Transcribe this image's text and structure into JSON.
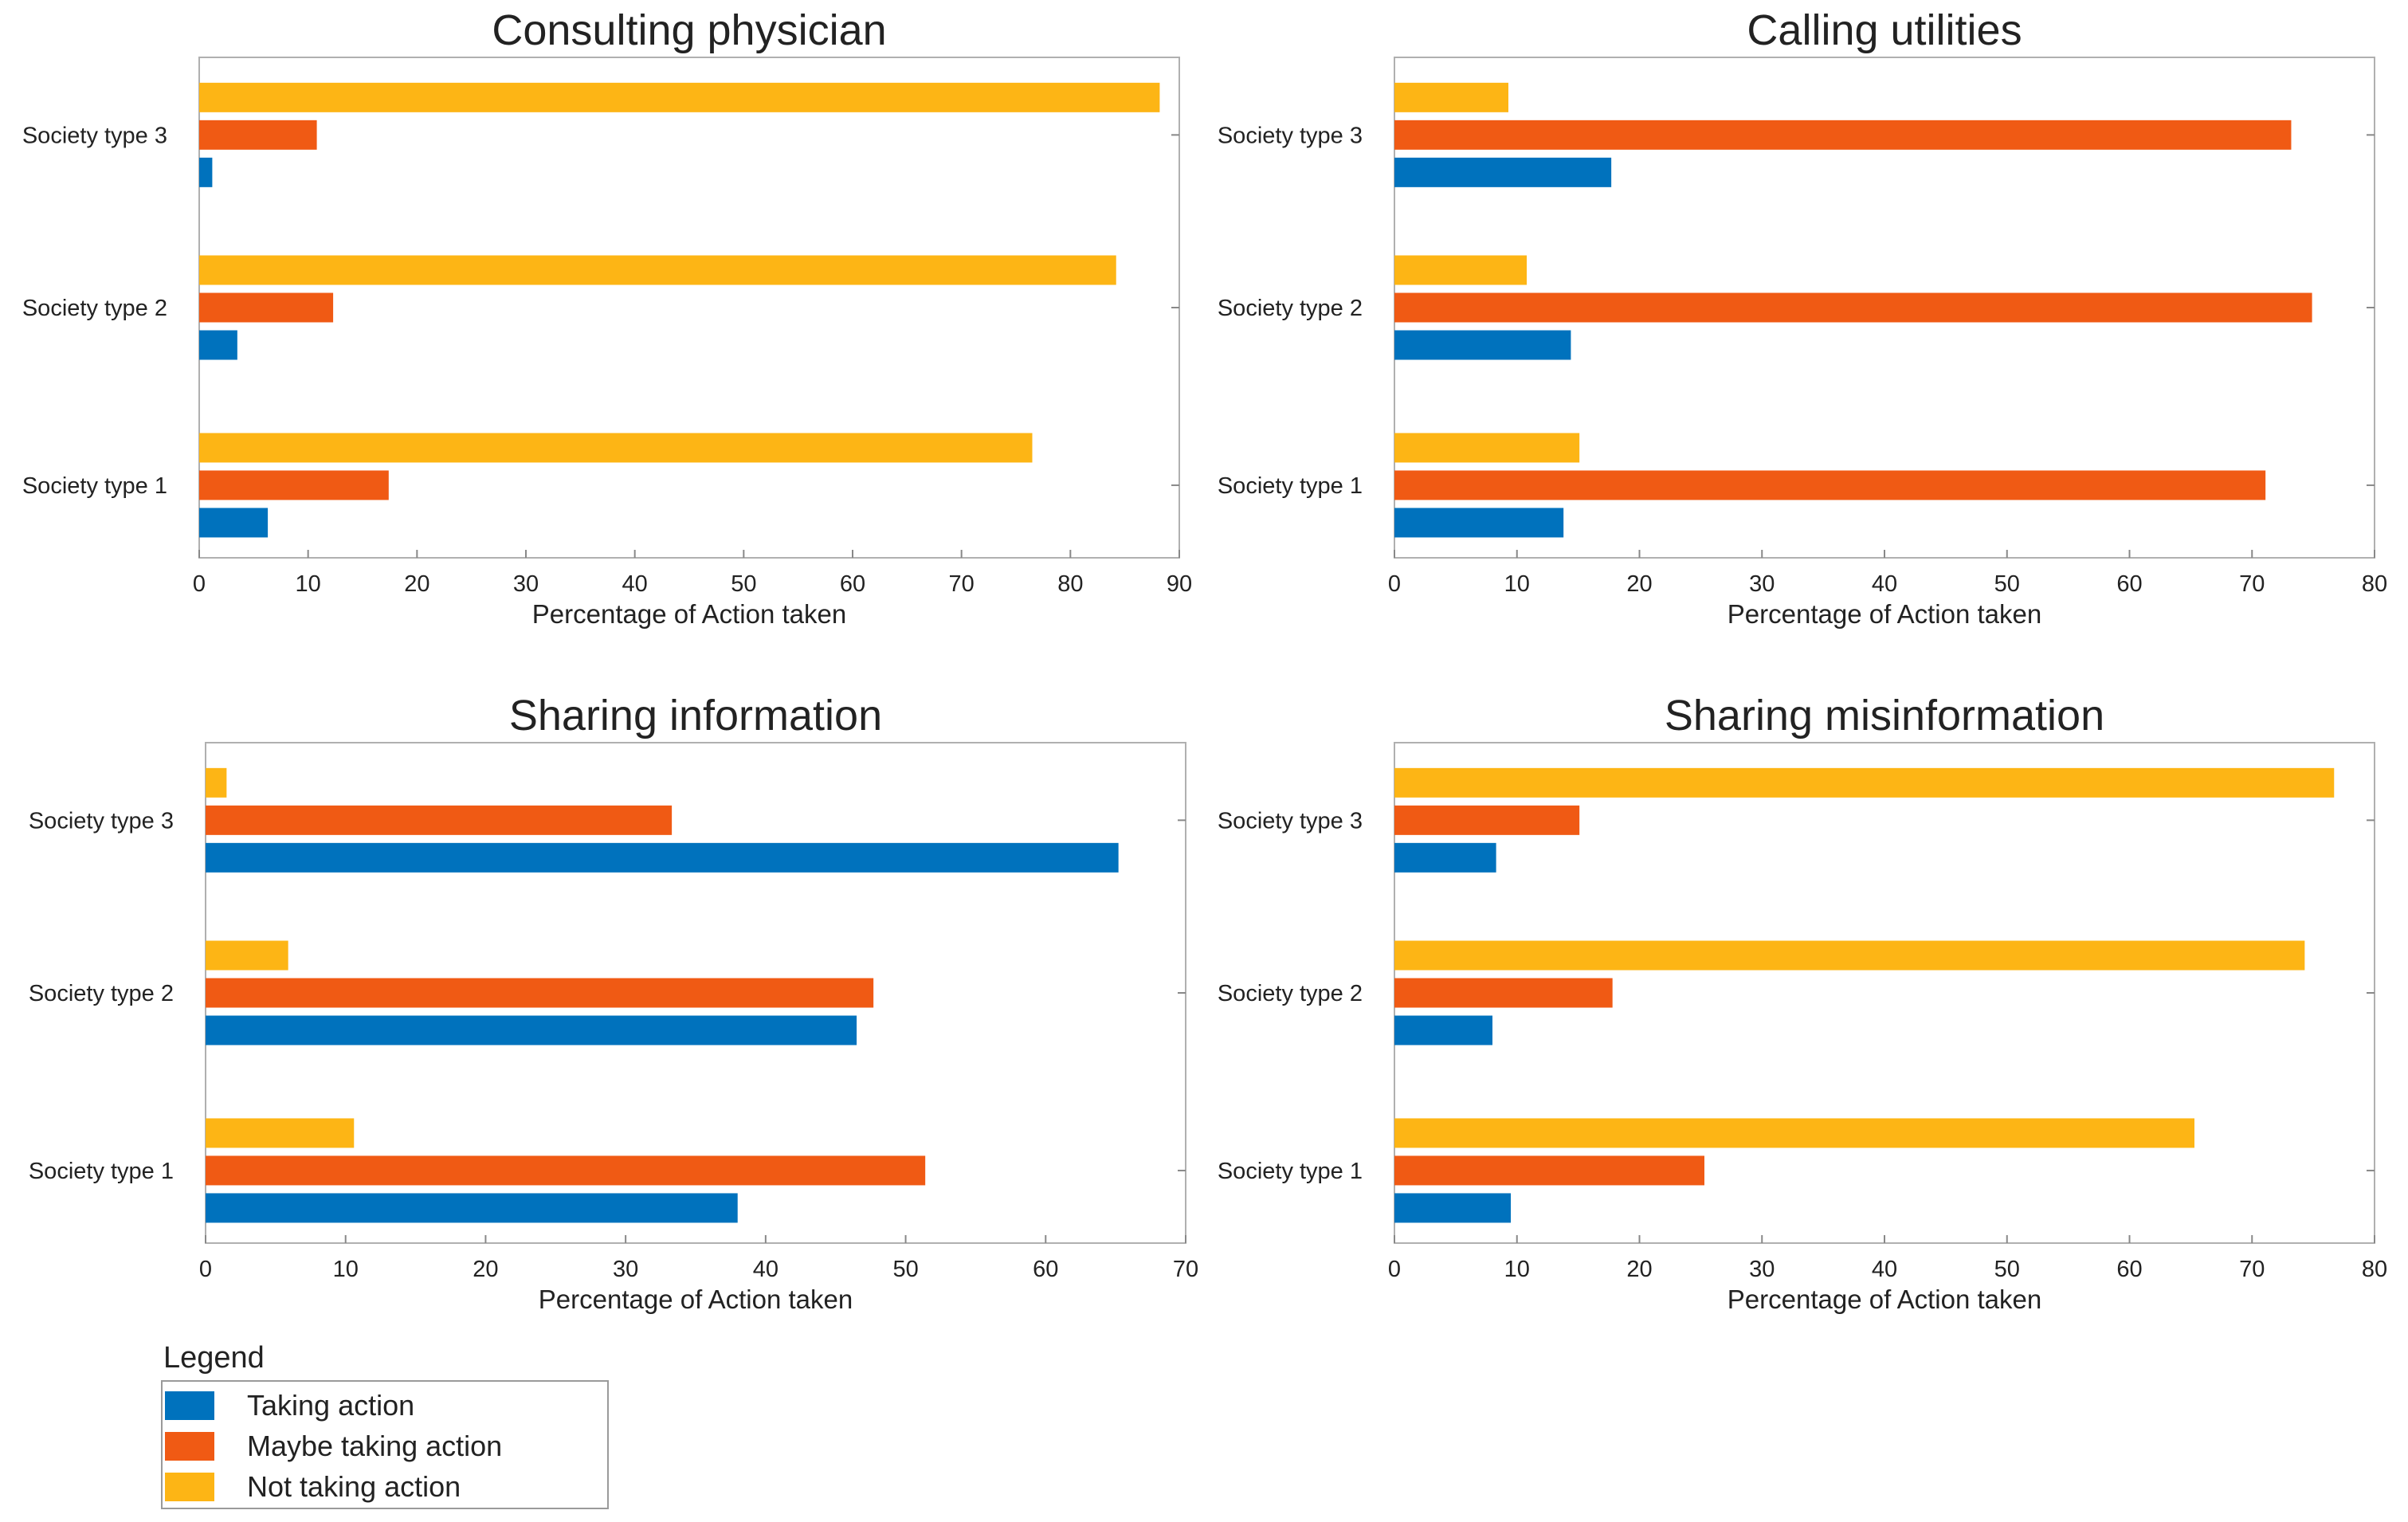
{
  "figure": {
    "legend": {
      "title": "Legend",
      "entries": [
        {
          "label": "Taking action",
          "color": "#0072BD"
        },
        {
          "label": "Maybe taking action",
          "color": "#F05A14"
        },
        {
          "label": "Not taking action",
          "color": "#FDB515"
        }
      ]
    }
  },
  "chart_data": [
    {
      "type": "bar",
      "orientation": "horizontal",
      "title": "Consulting physician",
      "xlabel": "Percentage of Action taken",
      "ylabel": "",
      "xlim": [
        0,
        90
      ],
      "xticks": [
        0,
        10,
        20,
        30,
        40,
        50,
        60,
        70,
        80,
        90
      ],
      "categories": [
        "Society type 1",
        "Society type 2",
        "Society type 3"
      ],
      "series": [
        {
          "name": "Taking action",
          "values": [
            6.3,
            3.5,
            1.2
          ]
        },
        {
          "name": "Maybe taking action",
          "values": [
            17.4,
            12.3,
            10.8
          ]
        },
        {
          "name": "Not taking action",
          "values": [
            76.5,
            84.2,
            88.2
          ]
        }
      ]
    },
    {
      "type": "bar",
      "orientation": "horizontal",
      "title": "Calling utilities",
      "xlabel": "Percentage of Action taken",
      "ylabel": "",
      "xlim": [
        0,
        80
      ],
      "xticks": [
        0,
        10,
        20,
        30,
        40,
        50,
        60,
        70,
        80
      ],
      "categories": [
        "Society type 1",
        "Society type 2",
        "Society type 3"
      ],
      "series": [
        {
          "name": "Taking action",
          "values": [
            13.8,
            14.4,
            17.7
          ]
        },
        {
          "name": "Maybe taking action",
          "values": [
            71.1,
            74.9,
            73.2
          ]
        },
        {
          "name": "Not taking action",
          "values": [
            15.1,
            10.8,
            9.3
          ]
        }
      ]
    },
    {
      "type": "bar",
      "orientation": "horizontal",
      "title": "Sharing information",
      "xlabel": "Percentage of Action taken",
      "ylabel": "",
      "xlim": [
        0,
        70
      ],
      "xticks": [
        0,
        10,
        20,
        30,
        40,
        50,
        60,
        70
      ],
      "categories": [
        "Society type 1",
        "Society type 2",
        "Society type 3"
      ],
      "series": [
        {
          "name": "Taking action",
          "values": [
            38.0,
            46.5,
            65.2
          ]
        },
        {
          "name": "Maybe taking action",
          "values": [
            51.4,
            47.7,
            33.3
          ]
        },
        {
          "name": "Not taking action",
          "values": [
            10.6,
            5.9,
            1.5
          ]
        }
      ]
    },
    {
      "type": "bar",
      "orientation": "horizontal",
      "title": "Sharing misinformation",
      "xlabel": "Percentage of Action taken",
      "ylabel": "",
      "xlim": [
        0,
        80
      ],
      "xticks": [
        0,
        10,
        20,
        30,
        40,
        50,
        60,
        70,
        80
      ],
      "categories": [
        "Society type 1",
        "Society type 2",
        "Society type 3"
      ],
      "series": [
        {
          "name": "Taking action",
          "values": [
            9.5,
            8.0,
            8.3
          ]
        },
        {
          "name": "Maybe taking action",
          "values": [
            25.3,
            17.8,
            15.1
          ]
        },
        {
          "name": "Not taking action",
          "values": [
            65.3,
            74.3,
            76.7
          ]
        }
      ]
    }
  ]
}
